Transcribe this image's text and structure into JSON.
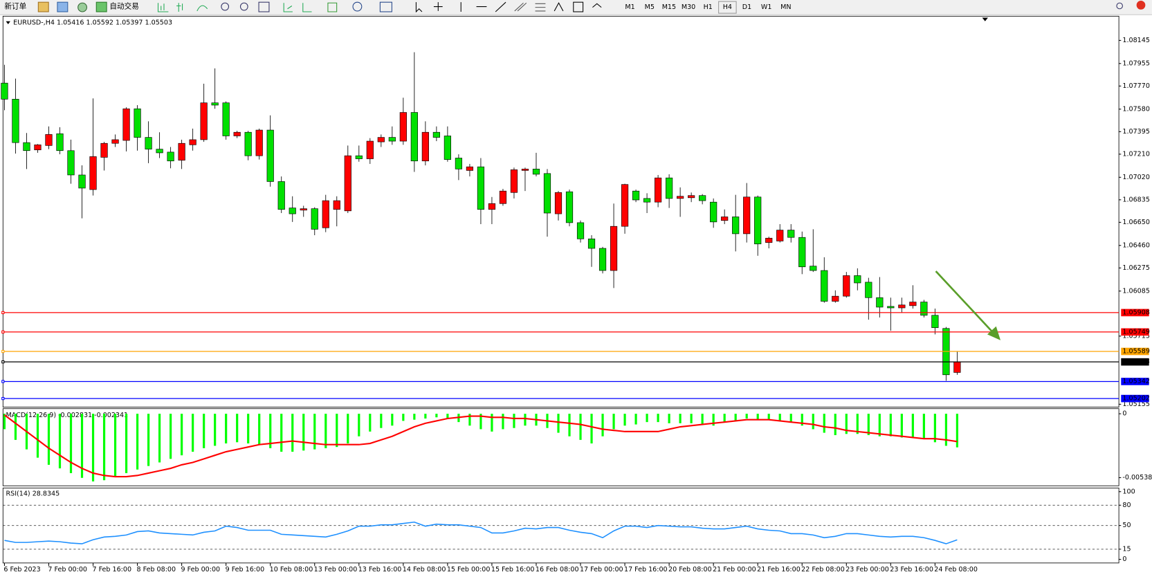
{
  "toolbar": {
    "new_order": "新订单",
    "auto_trading": "自动交易",
    "timeframes": [
      "M1",
      "M5",
      "M15",
      "M30",
      "H1",
      "H4",
      "D1",
      "W1",
      "MN"
    ]
  },
  "chart_data": [
    {
      "type": "candlestick",
      "title": "EURUSD-,H4  1.05416 1.05592 1.05397 1.05503",
      "categories": [
        "6 Feb 2023",
        null,
        null,
        null,
        "7 Feb 00:00",
        null,
        null,
        null,
        "7 Feb 16:00",
        null,
        null,
        null,
        "8 Feb 08:00",
        null,
        null,
        null,
        "9 Feb 00:00",
        null,
        null,
        null,
        "9 Feb 16:00",
        null,
        null,
        null,
        "10 Feb 08:00",
        null,
        null,
        null,
        "13 Feb 00:00",
        null,
        null,
        null,
        "13 Feb 16:00",
        null,
        null,
        null,
        "14 Feb 08:00",
        null,
        null,
        null,
        "15 Feb 00:00",
        null,
        null,
        null,
        "15 Feb 16:00",
        null,
        null,
        null,
        "16 Feb 08:00",
        null,
        null,
        null,
        "17 Feb 00:00",
        null,
        null,
        null,
        "17 Feb 16:00",
        null,
        null,
        null,
        "20 Feb 08:00",
        null,
        null,
        null,
        "21 Feb 00:00",
        null,
        null,
        null,
        "21 Feb 16:00",
        null,
        null,
        null,
        "22 Feb 08:00",
        null,
        null,
        null,
        "23 Feb 00:00",
        null,
        null,
        null,
        "23 Feb 16:00",
        null,
        null,
        null,
        "24 Feb 08:00",
        null,
        null
      ],
      "open": [
        1.07794,
        1.07662,
        1.07305,
        1.07245,
        1.07281,
        1.07378,
        1.07239,
        1.07039,
        1.06919,
        1.07184,
        1.07299,
        1.07323,
        1.07583,
        1.07348,
        1.07251,
        1.07227,
        1.0716,
        1.07287,
        1.07329,
        1.07632,
        1.07632,
        1.0736,
        1.0739,
        1.07197,
        1.07408,
        1.06985,
        1.06768,
        1.0675,
        1.06762,
        1.06605,
        1.06756,
        1.06744,
        1.07197,
        1.07172,
        1.07311,
        1.07348,
        1.07317,
        1.07553,
        1.07154,
        1.0739,
        1.0736,
        1.07178,
        1.07076,
        1.07106,
        1.06756,
        1.06804,
        1.06895,
        1.07076,
        1.07088,
        1.07051,
        1.0672,
        1.06901,
        1.06647,
        1.06514,
        1.06436,
        1.06254,
        1.06617,
        1.06907,
        1.06846,
        1.06816,
        1.07015,
        1.06846,
        1.06852,
        1.0687,
        1.06816,
        1.06665,
        1.06695,
        1.06556,
        1.06858,
        1.06484,
        1.06496,
        1.06586,
        1.06526,
        1.0629,
        1.06254,
        1.06001,
        1.06043,
        1.06212,
        1.06158,
        1.06031,
        1.05959,
        1.05947,
        1.05965,
        1.05995,
        1.05886,
        1.05778,
        1.05416
      ],
      "high": [
        1.07945,
        1.07831,
        1.07384,
        1.07293,
        1.07438,
        1.07432,
        1.07329,
        1.07118,
        1.07668,
        1.07311,
        1.07372,
        1.07595,
        1.07613,
        1.0748,
        1.0739,
        1.07269,
        1.07329,
        1.0742,
        1.07789,
        1.07915,
        1.07644,
        1.07402,
        1.07402,
        1.0742,
        1.07529,
        1.07027,
        1.06864,
        1.06786,
        1.06774,
        1.06876,
        1.06864,
        1.07281,
        1.07281,
        1.07342,
        1.07372,
        1.07438,
        1.07674,
        1.08048,
        1.0748,
        1.07438,
        1.07438,
        1.07209,
        1.0713,
        1.07178,
        1.06858,
        1.06925,
        1.071,
        1.071,
        1.07221,
        1.07088,
        1.06907,
        1.06919,
        1.06665,
        1.06544,
        1.06448,
        1.06804,
        1.06967,
        1.06919,
        1.06889,
        1.07039,
        1.07045,
        1.06937,
        1.06895,
        1.06882,
        1.06846,
        1.06756,
        1.06876,
        1.06973,
        1.0687,
        1.06532,
        1.06635,
        1.06635,
        1.06574,
        1.06593,
        1.06363,
        1.06091,
        1.06242,
        1.06272,
        1.06194,
        1.062,
        1.06031,
        1.06031,
        1.06133,
        1.06013,
        1.05941,
        1.0579,
        1.05592
      ],
      "low": [
        1.07571,
        1.07215,
        1.07088,
        1.07221,
        1.07251,
        1.07209,
        1.06967,
        1.06683,
        1.0687,
        1.07076,
        1.07269,
        1.07233,
        1.07239,
        1.07136,
        1.07178,
        1.07094,
        1.07088,
        1.07239,
        1.07311,
        1.07583,
        1.07329,
        1.07342,
        1.0716,
        1.07166,
        1.06943,
        1.06726,
        1.06653,
        1.06695,
        1.06544,
        1.06569,
        1.06617,
        1.06726,
        1.07148,
        1.0713,
        1.07269,
        1.07287,
        1.07287,
        1.07064,
        1.07118,
        1.07317,
        1.07148,
        1.06997,
        1.07027,
        1.06635,
        1.06635,
        1.06786,
        1.06846,
        1.06907,
        1.07027,
        1.06532,
        1.06665,
        1.06617,
        1.06484,
        1.06284,
        1.0623,
        1.0611,
        1.06556,
        1.06816,
        1.06726,
        1.06774,
        1.06768,
        1.06695,
        1.06816,
        1.06798,
        1.06605,
        1.06635,
        1.06411,
        1.06484,
        1.06375,
        1.06436,
        1.06484,
        1.06484,
        1.06224,
        1.06242,
        1.05989,
        1.05989,
        1.06031,
        1.06091,
        1.0585,
        1.05868,
        1.05759,
        1.0591,
        1.05941,
        1.05868,
        1.05729,
        1.05348,
        1.05397
      ],
      "close": [
        1.07662,
        1.07305,
        1.07239,
        1.07287,
        1.07372,
        1.07239,
        1.07039,
        1.06931,
        1.0719,
        1.07299,
        1.07329,
        1.07583,
        1.07348,
        1.07251,
        1.07221,
        1.07154,
        1.07299,
        1.07329,
        1.07632,
        1.07613,
        1.0736,
        1.0739,
        1.07197,
        1.07408,
        1.06985,
        1.06756,
        1.0672,
        1.06762,
        1.06593,
        1.06828,
        1.06828,
        1.07197,
        1.07172,
        1.07317,
        1.07348,
        1.07317,
        1.07553,
        1.07154,
        1.0739,
        1.07348,
        1.07166,
        1.07088,
        1.07106,
        1.06756,
        1.06804,
        1.06907,
        1.07082,
        1.07088,
        1.07045,
        1.06726,
        1.06895,
        1.06647,
        1.06514,
        1.06436,
        1.06254,
        1.06617,
        1.06961,
        1.06834,
        1.06816,
        1.07015,
        1.06846,
        1.06864,
        1.0687,
        1.06828,
        1.06653,
        1.06695,
        1.06556,
        1.06858,
        1.06472,
        1.0652,
        1.06586,
        1.06526,
        1.06284,
        1.06254,
        1.06001,
        1.06043,
        1.06212,
        1.06152,
        1.06031,
        1.05953,
        1.05947,
        1.05971,
        1.05995,
        1.05886,
        1.05784,
        1.05397,
        1.05503
      ],
      "up_color": "#ff0000",
      "down_color": "#00e000",
      "ylim": [
        1.05137,
        1.08338
      ],
      "yticks": [
        1.08145,
        1.07955,
        {
          "value": 1.0777,
          "label": "1.07770"
        },
        {
          "value": 1.0758,
          "label": "1.07580"
        },
        1.07395,
        {
          "value": 1.0721,
          "label": "1.07210"
        },
        {
          "value": 1.0702,
          "label": "1.07020"
        },
        1.06835,
        {
          "value": 1.0665,
          "label": "1.06650"
        },
        {
          "value": 1.0646,
          "label": "1.06460"
        },
        1.06275,
        1.06085,
        1.05715,
        1.05155
      ],
      "price_lines": [
        {
          "value": 1.05908,
          "color": "#ff0000"
        },
        {
          "value": 1.05749,
          "color": "#ff0000"
        },
        {
          "value": 1.05589,
          "color": "#ffa500"
        },
        {
          "value": 1.05503,
          "color": "#000000"
        },
        {
          "value": 1.05342,
          "color": "#0000ff"
        },
        {
          "value": 1.05202,
          "color": "#0000ff"
        }
      ]
    },
    {
      "type": "macd",
      "title": "MACD(12,26,9) -0.002831 -0.002341",
      "histogram": [
        -0.0013,
        -0.0022,
        -0.003,
        -0.0037,
        -0.0043,
        -0.0046,
        -0.005,
        -0.0054,
        -0.0057,
        -0.0056,
        -0.0053,
        -0.005,
        -0.0047,
        -0.0044,
        -0.0041,
        -0.0038,
        -0.0035,
        -0.0032,
        -0.0029,
        -0.0027,
        -0.0025,
        -0.0024,
        -0.0025,
        -0.0026,
        -0.0029,
        -0.0032,
        -0.0032,
        -0.0031,
        -0.003,
        -0.0029,
        -0.0028,
        -0.0025,
        -0.0019,
        -0.0015,
        -0.0012,
        -0.001,
        -0.0006,
        -0.0005,
        -0.0004,
        -0.0003,
        -0.0004,
        -0.0007,
        -0.001,
        -0.0013,
        -0.0015,
        -0.0013,
        -0.0012,
        -0.001,
        -0.001,
        -0.0012,
        -0.0016,
        -0.0019,
        -0.0022,
        -0.0025,
        -0.0019,
        -0.0013,
        -0.001,
        -0.0009,
        -0.0007,
        -0.0007,
        -0.0008,
        -0.0008,
        -0.0008,
        -0.0009,
        -0.001,
        -0.0007,
        -0.0006,
        -0.0004,
        -0.0005,
        -0.0005,
        -0.0006,
        -0.0007,
        -0.001,
        -0.0013,
        -0.0016,
        -0.0018,
        -0.0017,
        -0.0017,
        -0.0018,
        -0.0019,
        -0.0019,
        -0.002,
        -0.002,
        -0.0021,
        -0.0024,
        -0.0027,
        -0.00283
      ],
      "signal": [
        -0.0001,
        -0.0008,
        -0.0015,
        -0.0022,
        -0.0029,
        -0.0035,
        -0.0041,
        -0.0046,
        -0.005,
        -0.0052,
        -0.0053,
        -0.0053,
        -0.0052,
        -0.005,
        -0.0048,
        -0.0046,
        -0.0043,
        -0.0041,
        -0.0038,
        -0.0035,
        -0.0032,
        -0.003,
        -0.0028,
        -0.0026,
        -0.0025,
        -0.0024,
        -0.0023,
        -0.0024,
        -0.0025,
        -0.0026,
        -0.0026,
        -0.0026,
        -0.0026,
        -0.0025,
        -0.0022,
        -0.0019,
        -0.0015,
        -0.0011,
        -0.0008,
        -0.0006,
        -0.0004,
        -0.0003,
        -0.0002,
        -0.0002,
        -0.0003,
        -0.0003,
        -0.0004,
        -0.0004,
        -0.0005,
        -0.0006,
        -0.0007,
        -0.0008,
        -0.0009,
        -0.0011,
        -0.0013,
        -0.0014,
        -0.0015,
        -0.0015,
        -0.0015,
        -0.0015,
        -0.0013,
        -0.0011,
        -0.001,
        -0.0009,
        -0.0008,
        -0.0007,
        -0.0006,
        -0.0005,
        -0.0005,
        -0.0005,
        -0.0006,
        -0.0007,
        -0.0008,
        -0.0009,
        -0.0011,
        -0.0012,
        -0.0014,
        -0.0015,
        -0.0016,
        -0.0017,
        -0.0018,
        -0.0019,
        -0.002,
        -0.0021,
        -0.0021,
        -0.0022,
        -0.002341
      ],
      "histogram_color": "#00ff00",
      "signal_color": "#ff0000",
      "ylim": [
        -0.00607,
        0.00037
      ],
      "yticks": [
        0,
        -0.005384
      ]
    },
    {
      "type": "rsi",
      "title": "RSI(14) 28.8345",
      "values": [
        28,
        25,
        25,
        26,
        27,
        26,
        24,
        23,
        29,
        33,
        34,
        36,
        41,
        42,
        39,
        38,
        37,
        36,
        40,
        42,
        49,
        47,
        43,
        43,
        43,
        37,
        36,
        35,
        34,
        33,
        37,
        42,
        49,
        49,
        51,
        51,
        53,
        55,
        49,
        52,
        51,
        51,
        49,
        47,
        39,
        39,
        42,
        46,
        45,
        47,
        47,
        43,
        40,
        38,
        32,
        42,
        49,
        49,
        47,
        50,
        49,
        48,
        48,
        46,
        45,
        45,
        47,
        49,
        45,
        43,
        42,
        38,
        38,
        36,
        32,
        34,
        38,
        38,
        36,
        34,
        33,
        34,
        34,
        32,
        28,
        23,
        28.8345
      ],
      "color": "#1e90ff",
      "ylim": [
        -4.3,
        105.4
      ],
      "yticks": [
        100,
        80,
        50,
        15,
        0
      ],
      "levels": [
        80,
        50,
        15
      ]
    }
  ]
}
